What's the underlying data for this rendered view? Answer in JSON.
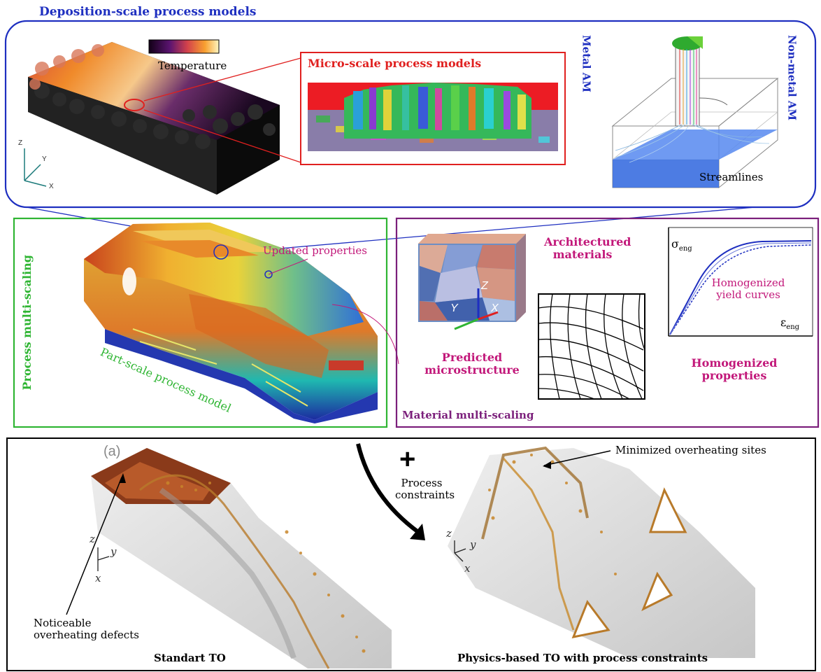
{
  "deposition": {
    "title": "Deposition-scale process models",
    "temperature_label": "Temperature",
    "micro_title": "Micro-scale process models",
    "metal_am": "Metal AM",
    "non_metal_am": "Non-metal AM",
    "streamlines": "Streamlines",
    "axis_z": "Z",
    "axis_y": "Y",
    "axis_x": "X"
  },
  "process": {
    "title": "Process multi-scaling",
    "part_scale": "Part-scale process model",
    "updated_properties": "Updated properties"
  },
  "material": {
    "title": "Material multi-scaling",
    "architectured": "Architectured materials",
    "predicted": "Predicted microstructure",
    "homogenized_properties": "Homogenized properties",
    "homogenized_yield": "Homogenized yield curves",
    "sigma_label": "σ",
    "sigma_sub": "eng",
    "eps_label": "ε",
    "eps_sub": "eng",
    "cube_axes": {
      "z": "Z",
      "y": "Y",
      "x": "X"
    }
  },
  "to": {
    "panel_label": "(a)",
    "plus": "+",
    "process_constraints": "Process constraints",
    "minimized": "Minimized overheating sites",
    "noticeable": "Noticeable overheating defects",
    "standard": "Standart TO",
    "physics": "Physics-based TO with process constraints",
    "axes": {
      "z": "z",
      "y": "y",
      "x": "x"
    }
  },
  "colors": {
    "blue_frame": "#1e2fc0",
    "red_frame": "#e0201f",
    "green_frame": "#2fb533",
    "purple_frame": "#7b1f7b",
    "magenta_text": "#c2187a"
  }
}
